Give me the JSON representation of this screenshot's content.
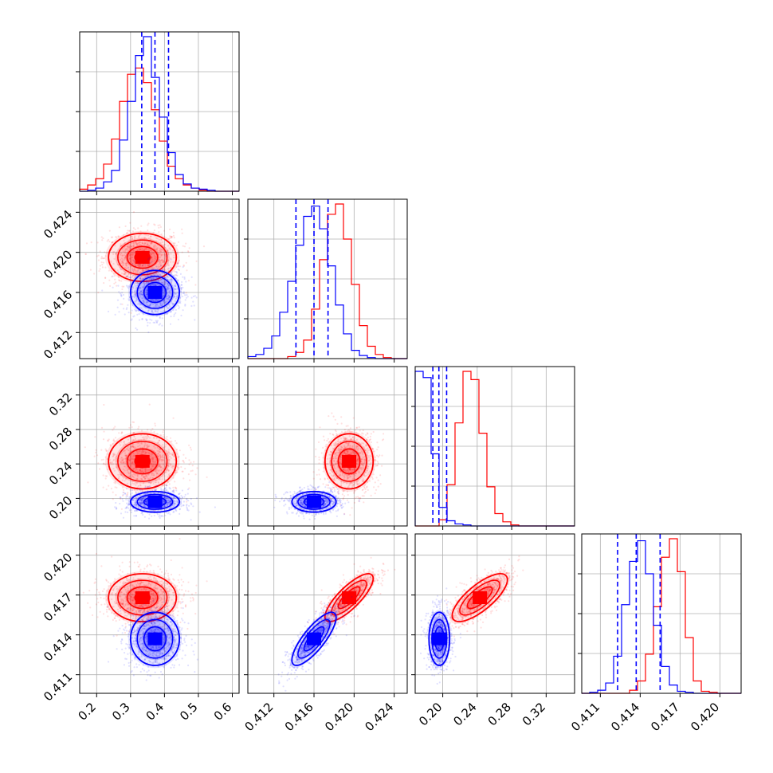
{
  "chart_data": {
    "type": "corner",
    "colors": {
      "blue": "#0000ff",
      "red": "#ff0000",
      "grid": "#b0b0b0"
    },
    "series": [
      {
        "color": "#0000ff",
        "mean": [
          0.372,
          0.416,
          0.196,
          0.4137
        ],
        "std": [
          0.036,
          0.0011,
          0.006,
          0.001
        ],
        "corr_13": 0.8,
        "quantiles": [
          [
            0.333,
            0.372,
            0.412
          ],
          [
            0.4142,
            0.416,
            0.4174
          ],
          [
            0.1885,
            0.1955,
            0.2045
          ],
          [
            0.4123,
            0.4137,
            0.4155
          ]
        ]
      },
      {
        "color": "#ff0000",
        "mean": [
          0.335,
          0.4195,
          0.243,
          0.4168
        ],
        "std": [
          0.05,
          0.0012,
          0.016,
          0.0009
        ],
        "corr_13": 0.8,
        "corr_23": 0.75
      }
    ],
    "params": [
      {
        "range": [
          0.15,
          0.62
        ],
        "ticks": [
          "0.2",
          "0.3",
          "0.4",
          "0.5",
          "0.6"
        ],
        "tick_values": [
          0.2,
          0.3,
          0.4,
          0.5,
          0.6
        ]
      },
      {
        "range": [
          0.4094,
          0.4253
        ],
        "ticks": [
          "0.412",
          "0.416",
          "0.420",
          "0.424"
        ],
        "tick_values": [
          0.412,
          0.416,
          0.42,
          0.424
        ]
      },
      {
        "range": [
          0.168,
          0.353
        ],
        "ticks": [
          "0.20",
          "0.24",
          "0.28",
          "0.32"
        ],
        "tick_values": [
          0.2,
          0.24,
          0.28,
          0.32
        ]
      },
      {
        "range": [
          0.4096,
          0.4216
        ],
        "ticks": [
          "0.411",
          "0.414",
          "0.417",
          "0.420"
        ],
        "tick_values": [
          0.411,
          0.414,
          0.417,
          0.42
        ]
      }
    ],
    "histograms": [
      {
        "bins": 20,
        "blue": [
          0,
          1,
          3,
          9,
          20,
          49,
          86,
          130,
          148,
          109,
          71,
          37,
          16,
          7,
          3,
          2,
          1,
          0,
          0,
          0
        ],
        "red": [
          2,
          6,
          12,
          26,
          50,
          86,
          112,
          118,
          104,
          78,
          48,
          24,
          12,
          6,
          3,
          1,
          0,
          0,
          0,
          0
        ]
      },
      {
        "bins": 20,
        "blue": [
          2,
          4,
          10,
          22,
          45,
          75,
          110,
          138,
          148,
          126,
          90,
          52,
          24,
          8,
          3,
          1,
          0,
          0,
          0,
          0
        ],
        "red": [
          0,
          0,
          0,
          0,
          0,
          2,
          6,
          18,
          48,
          96,
          140,
          150,
          116,
          72,
          32,
          12,
          4,
          1,
          0,
          0
        ]
      },
      {
        "bins": 20,
        "blue": [
          150,
          144,
          70,
          18,
          5,
          2,
          1,
          0,
          0,
          0,
          0,
          0,
          0,
          0,
          0,
          0,
          0,
          0,
          0,
          0
        ],
        "red": [
          0,
          0,
          0,
          6,
          40,
          100,
          150,
          142,
          90,
          38,
          12,
          4,
          1,
          0,
          0,
          0,
          0,
          0,
          0,
          0
        ]
      },
      {
        "bins": 20,
        "blue": [
          0,
          1,
          3,
          10,
          36,
          86,
          128,
          148,
          116,
          66,
          26,
          8,
          2,
          1,
          0,
          0,
          0,
          0,
          0,
          0
        ],
        "red": [
          0,
          0,
          0,
          0,
          0,
          0,
          3,
          12,
          38,
          84,
          132,
          150,
          118,
          54,
          12,
          2,
          1,
          0,
          0,
          0
        ]
      }
    ]
  }
}
